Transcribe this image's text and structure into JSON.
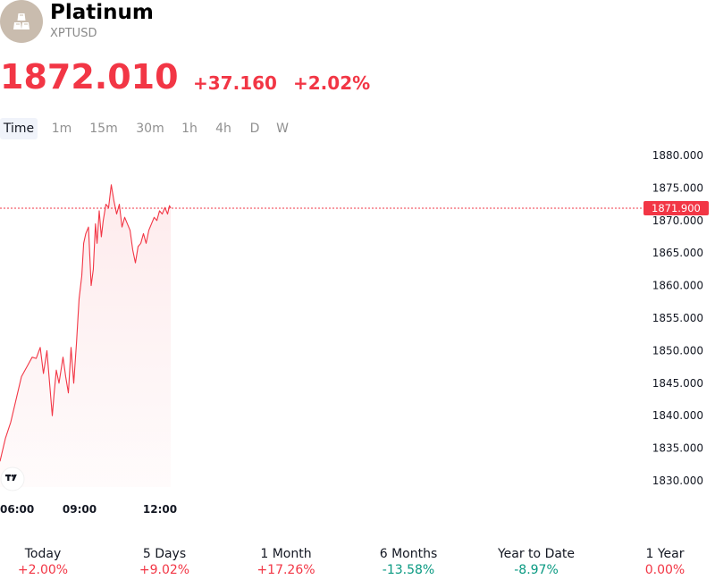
{
  "header": {
    "title": "Platinum",
    "symbol": "XPTUSD",
    "logo_icon": "gold-bars-icon",
    "logo_bg": "#c9bcae"
  },
  "quote": {
    "price": "1872.010",
    "change": "+37.160",
    "change_pct": "+2.02%",
    "color": "#f23645"
  },
  "tabs": [
    {
      "label": "Time",
      "active": true
    },
    {
      "label": "1m"
    },
    {
      "label": "15m"
    },
    {
      "label": "30m"
    },
    {
      "label": "1h"
    },
    {
      "label": "4h"
    },
    {
      "label": "D"
    },
    {
      "label": "W"
    }
  ],
  "chart_data": {
    "type": "area",
    "x_tick_labels": [
      "06:00",
      "09:00",
      "12:00"
    ],
    "y_tick_labels": [
      "1880.000",
      "1875.000",
      "1870.000",
      "1865.000",
      "1860.000",
      "1855.000",
      "1850.000",
      "1845.000",
      "1840.000",
      "1835.000",
      "1830.000"
    ],
    "ylim": [
      1830,
      1880
    ],
    "x_range_hours": [
      6,
      16
    ],
    "last_price_label": "1871.900",
    "last_price": 1871.9,
    "line_color": "#f23645",
    "logo_icon": "tradingview-logo-icon",
    "series": [
      {
        "x": [
          6.0,
          6.2,
          6.4,
          6.6,
          6.8,
          7.0,
          7.2,
          7.35,
          7.5,
          7.62,
          7.75,
          7.85,
          7.95,
          8.02,
          8.1,
          8.2,
          8.35,
          8.45,
          8.55,
          8.65,
          8.75,
          8.85,
          8.95,
          9.05,
          9.12,
          9.2,
          9.3,
          9.4,
          9.48,
          9.56,
          9.62,
          9.7,
          9.78,
          9.85,
          9.95,
          10.05,
          10.15,
          10.25,
          10.35,
          10.45,
          10.55,
          10.65,
          10.75,
          10.85,
          10.95,
          11.05,
          11.15,
          11.25,
          11.35,
          11.45,
          11.55,
          11.65,
          11.75,
          11.85,
          11.95,
          12.05,
          12.15,
          12.25,
          12.32,
          12.37
        ],
        "y": [
          1833.0,
          1836.5,
          1839.0,
          1842.5,
          1846.0,
          1847.5,
          1849.0,
          1848.8,
          1850.5,
          1846.5,
          1850.0,
          1845.0,
          1840.0,
          1843.5,
          1847.0,
          1845.0,
          1849.0,
          1846.0,
          1843.5,
          1850.5,
          1845.0,
          1851.0,
          1858.0,
          1861.5,
          1866.5,
          1868.0,
          1869.0,
          1860.0,
          1862.5,
          1869.5,
          1866.5,
          1871.5,
          1867.5,
          1870.0,
          1872.5,
          1872.0,
          1875.5,
          1873.0,
          1871.0,
          1872.5,
          1869.0,
          1870.5,
          1869.5,
          1868.5,
          1865.5,
          1863.5,
          1866.0,
          1866.5,
          1868.0,
          1866.5,
          1868.5,
          1869.5,
          1870.5,
          1870.0,
          1871.5,
          1871.0,
          1872.0,
          1871.0,
          1872.3,
          1871.9
        ]
      }
    ]
  },
  "performance": [
    {
      "label": "Today",
      "value": "+2.00%",
      "color": "#f23645"
    },
    {
      "label": "5 Days",
      "value": "+9.02%",
      "color": "#f23645"
    },
    {
      "label": "1 Month",
      "value": "+17.26%",
      "color": "#f23645"
    },
    {
      "label": "6 Months",
      "value": "-13.58%",
      "color": "#089981"
    },
    {
      "label": "Year to Date",
      "value": "-8.97%",
      "color": "#089981"
    },
    {
      "label": "1 Year",
      "value": "0.00%",
      "color": "#f23645"
    }
  ]
}
